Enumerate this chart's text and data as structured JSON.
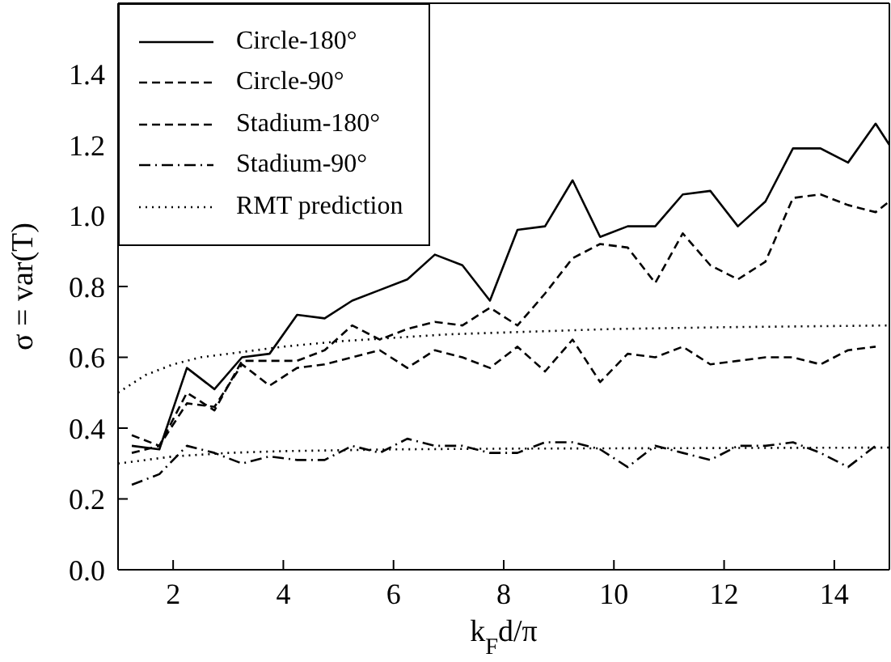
{
  "chart_data": {
    "type": "line",
    "xlabel": "k$_{F}$d/π",
    "ylabel": "σ = var(T)",
    "xlim": [
      1,
      15
    ],
    "xticks": [
      2,
      4,
      6,
      8,
      10,
      12,
      14
    ],
    "ylim": [
      0,
      1.6
    ],
    "yticks": [
      {
        "value": 0,
        "label": "0.0"
      },
      {
        "value": 0.2,
        "label": "0.2"
      },
      {
        "value": 0.4,
        "label": "0.4"
      },
      {
        "value": 0.6,
        "label": "0.6"
      },
      {
        "value": 0.8,
        "label": "0.8"
      },
      {
        "value": 1,
        "label": "1.0"
      },
      {
        "value": 1.2,
        "label": "1.2"
      },
      {
        "value": 1.4,
        "label": "1.4"
      }
    ],
    "grid": false,
    "legend": "top left",
    "marker": "none",
    "series": [
      {
        "name": "Circle-180°",
        "color": "#000000",
        "line_style": "solid",
        "x": [
          1.25,
          1.75,
          2.25,
          2.75,
          3.25,
          3.75,
          4.25,
          4.75,
          5.25,
          5.75,
          6.25,
          6.75,
          7.25,
          7.75,
          8.25,
          8.75,
          9.25,
          9.75,
          10.25,
          10.75,
          11.25,
          11.75,
          12.25,
          12.75,
          13.25,
          13.75,
          14.25,
          14.75,
          15
        ],
        "values": [
          0.35,
          0.34,
          0.57,
          0.51,
          0.6,
          0.61,
          0.72,
          0.71,
          0.76,
          0.79,
          0.82,
          0.89,
          0.86,
          0.76,
          0.96,
          0.97,
          1.1,
          0.94,
          0.97,
          0.97,
          1.06,
          1.07,
          0.97,
          1.04,
          1.19,
          1.19,
          1.15,
          1.26,
          1.2
        ]
      },
      {
        "name": "Circle-90°",
        "color": "#000000",
        "line_style": "dashed",
        "x": [
          1.25,
          1.75,
          2.25,
          2.75,
          3.25,
          3.75,
          4.25,
          4.75,
          5.25,
          5.75,
          6.25,
          6.75,
          7.25,
          7.75,
          8.25,
          8.75,
          9.25,
          9.75,
          10.25,
          10.75,
          11.25,
          11.75,
          12.25,
          12.75,
          13.25,
          13.75,
          14.25,
          14.75,
          15
        ],
        "values": [
          0.33,
          0.35,
          0.5,
          0.45,
          0.59,
          0.59,
          0.59,
          0.62,
          0.69,
          0.65,
          0.68,
          0.7,
          0.69,
          0.74,
          0.69,
          0.78,
          0.88,
          0.92,
          0.91,
          0.81,
          0.95,
          0.86,
          0.82,
          0.87,
          1.05,
          1.06,
          1.03,
          1.01,
          1.04
        ]
      },
      {
        "name": "Stadium-180°",
        "color": "#000000",
        "line_style": "dashed",
        "x": [
          1.25,
          1.75,
          2.25,
          2.75,
          3.25,
          3.75,
          4.25,
          4.75,
          5.25,
          5.75,
          6.25,
          6.75,
          7.25,
          7.75,
          8.25,
          8.75,
          9.25,
          9.75,
          10.25,
          10.75,
          11.25,
          11.75,
          12.25,
          12.75,
          13.25,
          13.75,
          14.25,
          14.75
        ],
        "values": [
          0.38,
          0.35,
          0.47,
          0.46,
          0.58,
          0.52,
          0.57,
          0.58,
          0.6,
          0.62,
          0.57,
          0.62,
          0.6,
          0.57,
          0.63,
          0.56,
          0.65,
          0.53,
          0.61,
          0.6,
          0.63,
          0.58,
          0.59,
          0.6,
          0.6,
          0.58,
          0.62,
          0.63
        ]
      },
      {
        "name": "Stadium-90°",
        "color": "#000000",
        "line_style": "dashdot",
        "x": [
          1.25,
          1.75,
          2.25,
          2.75,
          3.25,
          3.75,
          4.25,
          4.75,
          5.25,
          5.75,
          6.25,
          6.75,
          7.25,
          7.75,
          8.25,
          8.75,
          9.25,
          9.75,
          10.25,
          10.75,
          11.25,
          11.75,
          12.25,
          12.75,
          13.25,
          13.75,
          14.25,
          14.75
        ],
        "values": [
          0.24,
          0.27,
          0.35,
          0.33,
          0.3,
          0.32,
          0.31,
          0.31,
          0.35,
          0.33,
          0.37,
          0.35,
          0.35,
          0.33,
          0.33,
          0.36,
          0.36,
          0.34,
          0.29,
          0.35,
          0.33,
          0.31,
          0.35,
          0.35,
          0.36,
          0.33,
          0.29,
          0.35
        ]
      },
      {
        "name": "RMT prediction",
        "color": "#000000",
        "line_style": "dotted",
        "x": [
          1,
          1.5,
          2,
          2.5,
          3,
          4,
          5,
          6,
          7,
          8,
          9,
          10,
          12,
          15
        ],
        "values": [
          0.5,
          0.55,
          0.58,
          0.6,
          0.61,
          0.63,
          0.645,
          0.655,
          0.665,
          0.67,
          0.675,
          0.68,
          0.685,
          0.69
        ]
      },
      {
        "color": "#000000",
        "line_style": "dotted",
        "x": [
          1,
          1.5,
          2,
          3,
          4,
          6,
          8,
          10,
          15
        ],
        "values": [
          0.3,
          0.31,
          0.32,
          0.33,
          0.335,
          0.34,
          0.342,
          0.343,
          0.345
        ]
      }
    ]
  }
}
